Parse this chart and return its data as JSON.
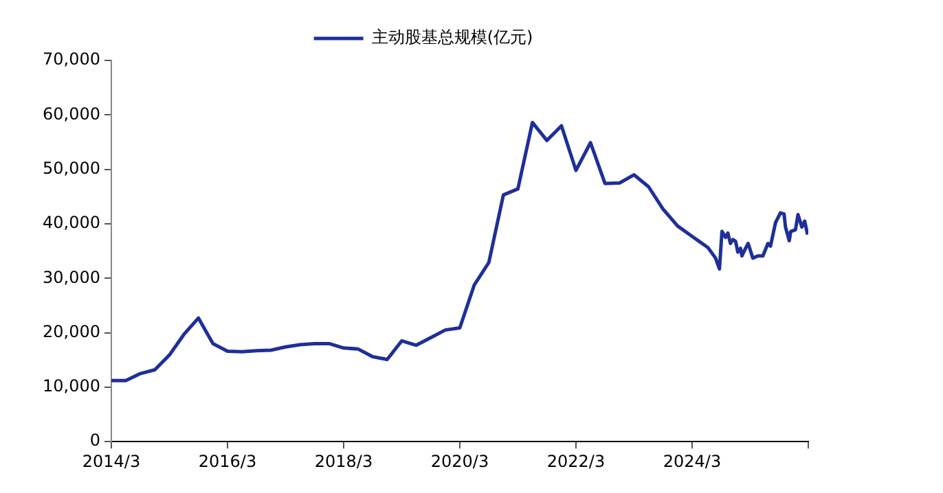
{
  "chart_data": {
    "type": "line",
    "legend": "top",
    "grid": false,
    "marker": "none",
    "line_style": "solid",
    "xlim": [
      "2014-03",
      "2026-03"
    ],
    "xticks": [
      {
        "value": "2014-03",
        "label": "2014/3"
      },
      {
        "value": "2016-03",
        "label": "2016/3"
      },
      {
        "value": "2018-03",
        "label": "2018/3"
      },
      {
        "value": "2020-03",
        "label": "2020/3"
      },
      {
        "value": "2022-03",
        "label": "2022/3"
      },
      {
        "value": "2024-03",
        "label": "2024/3"
      },
      {
        "value": "2026-03",
        "label": null
      }
    ],
    "ylim": [
      0,
      70000
    ],
    "yticks": [
      0,
      {
        "value": 10000,
        "label": "10,000"
      },
      {
        "value": 20000,
        "label": "20,000"
      },
      {
        "value": 30000,
        "label": "30,000"
      },
      {
        "value": 40000,
        "label": "40,000"
      },
      {
        "value": 50000,
        "label": "50,000"
      },
      {
        "value": 60000,
        "label": "60,000"
      },
      {
        "value": 70000,
        "label": "70,000"
      }
    ],
    "series": [
      {
        "name": "主动股基总规模(亿元)",
        "color": "#1f2f98",
        "x": [
          "2014-03",
          "2014-06",
          "2014-09",
          "2014-12",
          "2015-03",
          "2015-06",
          "2015-09",
          "2015-12",
          "2016-03",
          "2016-06",
          "2016-09",
          "2016-12",
          "2017-03",
          "2017-06",
          "2017-09",
          "2017-12",
          "2018-03",
          "2018-06",
          "2018-09",
          "2018-12",
          "2019-03",
          "2019-06",
          "2019-09",
          "2019-12",
          "2020-03",
          "2020-06",
          "2020-09",
          "2020-12",
          "2021-03",
          "2021-06",
          "2021-09",
          "2021-12",
          "2022-03",
          "2022-06",
          "2022-09",
          "2022-12",
          "2023-03",
          "2023-06",
          "2023-09",
          "2023-12",
          "2024-03",
          "2024-06-10",
          "2024-07-27",
          "2024-08-21",
          "2024-09-06",
          "2024-09-28",
          "2024-10-13",
          "2024-10-29",
          "2024-11-14",
          "2024-11-30",
          "2024-12-15",
          "2025-01-01",
          "2025-01-10",
          "2025-02-02",
          "2025-02-17",
          "2025-03-18",
          "2025-04-18",
          "2025-05-20",
          "2025-06-21",
          "2025-07-07",
          "2025-08-08",
          "2025-09-08",
          "2025-10-01",
          "2025-10-10",
          "2025-11-03",
          "2025-11-12",
          "2025-12-12",
          "2025-12-28",
          "2026-01-22",
          "2026-02-08",
          "2026-02-25"
        ],
        "values": [
          11200,
          11200,
          12500,
          13200,
          15900,
          19700,
          22700,
          18000,
          16600,
          16500,
          16700,
          16800,
          17400,
          17800,
          18000,
          18000,
          17200,
          17000,
          15600,
          15100,
          18500,
          17700,
          19100,
          20500,
          20900,
          28800,
          32900,
          45300,
          46400,
          58600,
          55300,
          58000,
          49800,
          54900,
          47400,
          47500,
          49000,
          46800,
          42700,
          39600,
          37700,
          35600,
          33700,
          31700,
          38600,
          37500,
          38300,
          36400,
          37100,
          36800,
          34800,
          35500,
          34100,
          35500,
          36400,
          33700,
          34100,
          34100,
          36400,
          35900,
          40200,
          42000,
          41800,
          39400,
          36900,
          38600,
          38900,
          41700,
          39400,
          40500,
          38000
        ]
      }
    ]
  }
}
